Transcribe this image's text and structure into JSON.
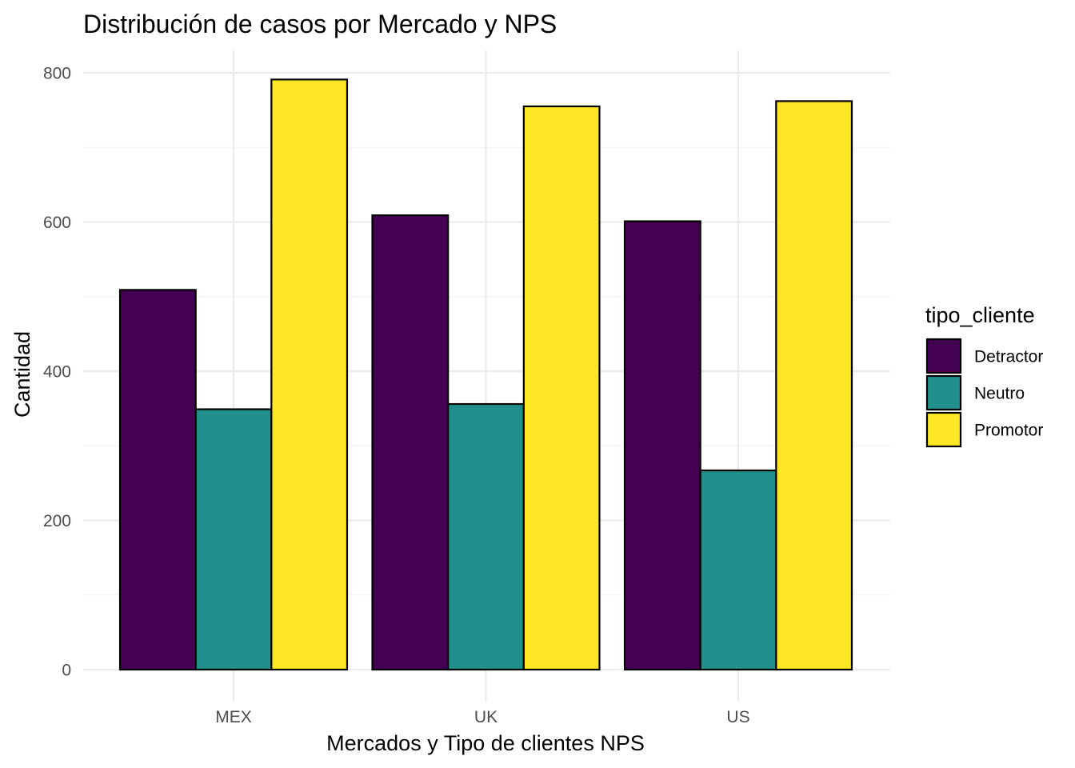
{
  "chart_data": {
    "type": "bar",
    "title": "Distribución de casos por Mercado y NPS",
    "xlabel": "Mercados y Tipo de clientes NPS",
    "ylabel": "Cantidad",
    "categories": [
      "MEX",
      "UK",
      "US"
    ],
    "series": [
      {
        "name": "Detractor",
        "color": "#440154",
        "values": [
          509,
          609,
          601
        ]
      },
      {
        "name": "Neutro",
        "color": "#21908C",
        "values": [
          349,
          356,
          267
        ]
      },
      {
        "name": "Promotor",
        "color": "#FDE725",
        "values": [
          791,
          755,
          762
        ]
      }
    ],
    "ylim": [
      0,
      800
    ],
    "yticks": [
      0,
      200,
      400,
      600,
      800
    ],
    "grid": true,
    "legend": {
      "title": "tipo_cliente",
      "position": "right"
    }
  }
}
